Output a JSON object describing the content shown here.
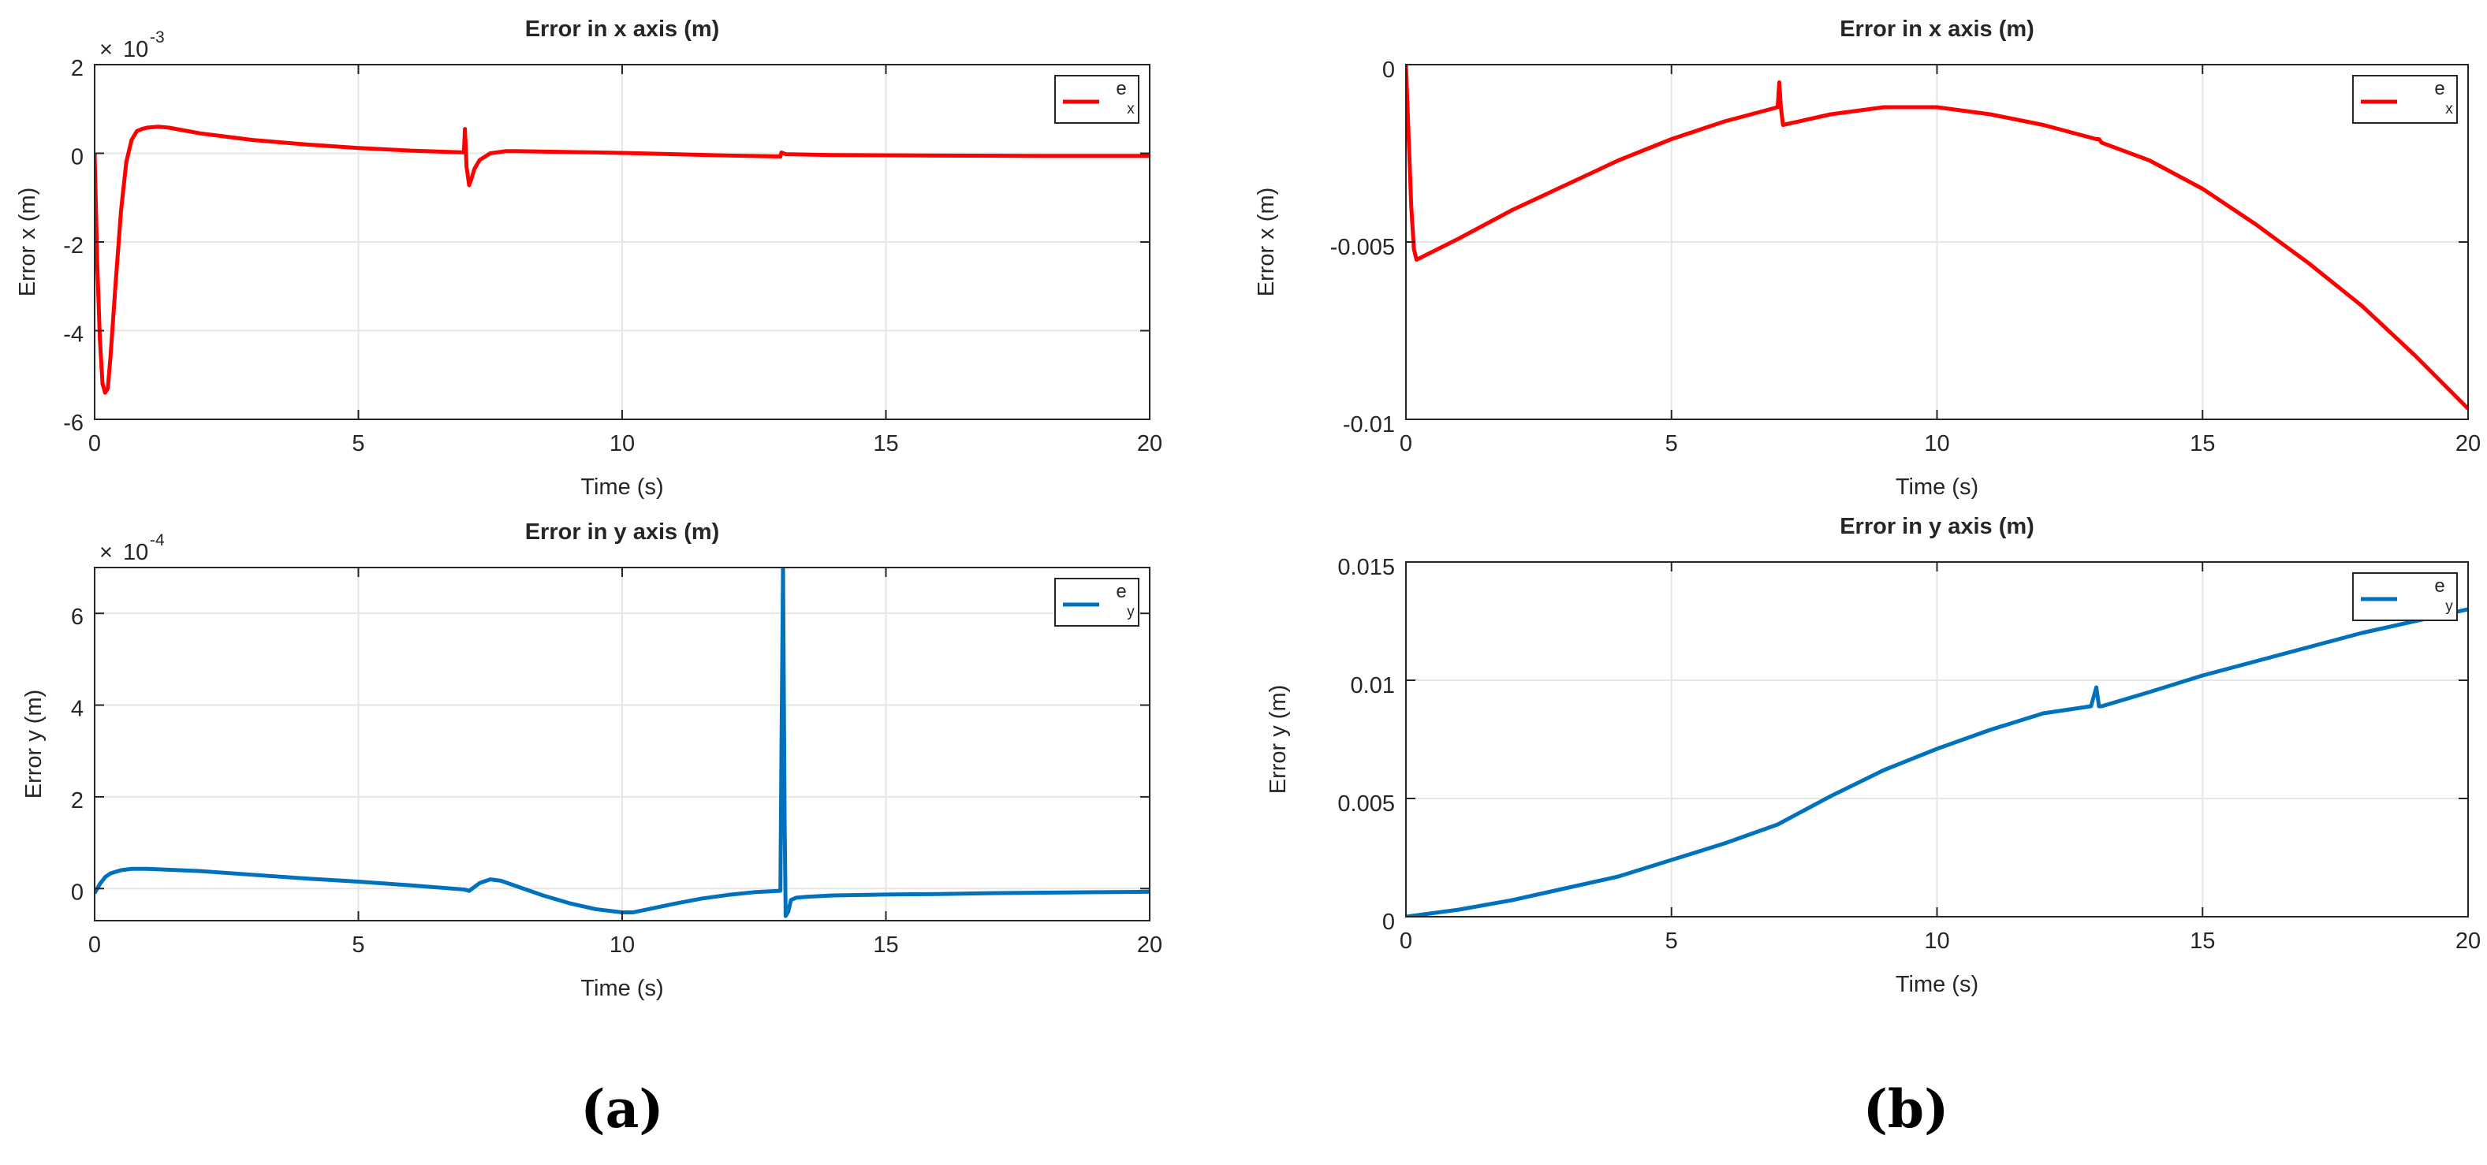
{
  "panel_labels": [
    "(a)",
    "(b)"
  ],
  "colors": {
    "ex": "#ff0000",
    "ey": "#0072bd",
    "axis": "#262626",
    "grid": "#e6e6e6"
  },
  "chart_data": [
    {
      "type": "line",
      "title": "Error in x axis (m)",
      "xlabel": "Time (s)",
      "ylabel": "Error x (m)",
      "exponent_base": "10",
      "exponent": "-3",
      "xlim": [
        0,
        20
      ],
      "ylim": [
        -6,
        2
      ],
      "xticks": [
        0,
        5,
        10,
        15,
        20
      ],
      "xtick_labels": [
        "0",
        "5",
        "10",
        "15",
        "20"
      ],
      "yticks": [
        -6,
        -4,
        -2,
        0,
        2
      ],
      "ytick_labels": [
        "-6",
        "-4",
        "-2",
        "0",
        "2"
      ],
      "grid": true,
      "legend_position": "top-right",
      "series": [
        {
          "name": "e x",
          "legend_main": "e",
          "legend_sub": "x",
          "color": "#ff0000",
          "x": [
            0,
            0.05,
            0.1,
            0.15,
            0.2,
            0.25,
            0.3,
            0.4,
            0.5,
            0.6,
            0.7,
            0.8,
            0.9,
            1.0,
            1.2,
            1.4,
            2,
            3,
            4,
            5,
            6,
            7.0,
            7.02,
            7.05,
            7.1,
            7.15,
            7.2,
            7.3,
            7.5,
            7.8,
            8,
            9,
            10,
            11,
            12,
            13.0,
            13.02,
            13.1,
            14,
            16,
            18,
            20
          ],
          "y": [
            0,
            -2.5,
            -4.2,
            -5.2,
            -5.4,
            -5.3,
            -4.6,
            -2.9,
            -1.3,
            -0.2,
            0.3,
            0.5,
            0.55,
            0.58,
            0.6,
            0.58,
            0.45,
            0.3,
            0.2,
            0.12,
            0.06,
            0.02,
            0.55,
            -0.3,
            -0.72,
            -0.55,
            -0.35,
            -0.15,
            0.0,
            0.05,
            0.05,
            0.03,
            0.01,
            -0.02,
            -0.05,
            -0.07,
            0.02,
            -0.02,
            -0.04,
            -0.05,
            -0.06,
            -0.06
          ]
        }
      ]
    },
    {
      "type": "line",
      "title": "Error in y axis (m)",
      "xlabel": "Time (s)",
      "ylabel": "Error y (m)",
      "exponent_base": "10",
      "exponent": "-4",
      "xlim": [
        0,
        20
      ],
      "ylim": [
        -0.7,
        7
      ],
      "xticks": [
        0,
        5,
        10,
        15,
        20
      ],
      "xtick_labels": [
        "0",
        "5",
        "10",
        "15",
        "20"
      ],
      "yticks": [
        0,
        2,
        4,
        6
      ],
      "ytick_labels": [
        "0",
        "2",
        "4",
        "6"
      ],
      "grid": true,
      "legend_position": "top-right",
      "series": [
        {
          "name": "e y",
          "legend_main": "e",
          "legend_sub": "y",
          "color": "#0072bd",
          "x": [
            0,
            0.1,
            0.2,
            0.3,
            0.5,
            0.7,
            1,
            2,
            3,
            4,
            5,
            6,
            7.0,
            7.1,
            7.3,
            7.5,
            7.7,
            8,
            8.5,
            9,
            9.5,
            10,
            10.2,
            10.5,
            11,
            11.5,
            12,
            12.5,
            13.0,
            13.02,
            13.05,
            13.08,
            13.1,
            13.15,
            13.2,
            13.3,
            13.5,
            14,
            15,
            16,
            17,
            18,
            19,
            20
          ],
          "y": [
            -0.1,
            0.1,
            0.25,
            0.33,
            0.4,
            0.43,
            0.43,
            0.38,
            0.3,
            0.22,
            0.15,
            0.07,
            -0.02,
            -0.05,
            0.12,
            0.2,
            0.17,
            0.05,
            -0.15,
            -0.32,
            -0.45,
            -0.52,
            -0.52,
            -0.45,
            -0.33,
            -0.22,
            -0.14,
            -0.08,
            -0.05,
            3.0,
            7.0,
            1.5,
            -0.6,
            -0.5,
            -0.25,
            -0.2,
            -0.18,
            -0.15,
            -0.13,
            -0.12,
            -0.1,
            -0.09,
            -0.08,
            -0.07
          ]
        }
      ]
    },
    {
      "type": "line",
      "title": "Error in x axis (m)",
      "xlabel": "Time (s)",
      "ylabel": "Error x (m)",
      "xlim": [
        0,
        20
      ],
      "ylim": [
        -0.01,
        0
      ],
      "xticks": [
        0,
        5,
        10,
        15,
        20
      ],
      "xtick_labels": [
        "0",
        "5",
        "10",
        "15",
        "20"
      ],
      "yticks": [
        -0.01,
        -0.005,
        0
      ],
      "ytick_labels": [
        "-0.01",
        "-0.005",
        "0"
      ],
      "grid": true,
      "legend_position": "top-right",
      "series": [
        {
          "name": "e x",
          "legend_main": "e",
          "legend_sub": "x",
          "color": "#ff0000",
          "x": [
            0,
            0.05,
            0.1,
            0.15,
            0.2,
            1,
            2,
            3,
            4,
            5,
            6,
            7.0,
            7.03,
            7.06,
            7.1,
            8,
            9,
            9.5,
            10,
            11,
            12,
            13,
            13.05,
            13.1,
            14,
            15,
            16,
            17,
            18,
            19,
            20
          ],
          "y": [
            0,
            -0.002,
            -0.004,
            -0.0052,
            -0.0055,
            -0.0049,
            -0.0041,
            -0.0034,
            -0.0027,
            -0.0021,
            -0.0016,
            -0.0012,
            -0.0005,
            -0.0012,
            -0.0017,
            -0.0014,
            -0.0012,
            -0.0012,
            -0.0012,
            -0.0014,
            -0.0017,
            -0.0021,
            -0.0021,
            -0.0022,
            -0.0027,
            -0.0035,
            -0.0045,
            -0.0056,
            -0.0068,
            -0.0082,
            -0.0097
          ]
        }
      ]
    },
    {
      "type": "line",
      "title": "Error in y axis (m)",
      "xlabel": "Time (s)",
      "ylabel": "Error y (m)",
      "xlim": [
        0,
        20
      ],
      "ylim": [
        0,
        0.015
      ],
      "xticks": [
        0,
        5,
        10,
        15,
        20
      ],
      "xtick_labels": [
        "0",
        "5",
        "10",
        "15",
        "20"
      ],
      "yticks": [
        0,
        0.005,
        0.01,
        0.015
      ],
      "ytick_labels": [
        "0",
        "0.005",
        "0.01",
        "0.015"
      ],
      "grid": true,
      "legend_position": "top-right",
      "series": [
        {
          "name": "e y",
          "legend_main": "e",
          "legend_sub": "y",
          "color": "#0072bd",
          "x": [
            0,
            1,
            2,
            3,
            4,
            5,
            6,
            7,
            8,
            9,
            10,
            11,
            12,
            12.9,
            13.0,
            13.05,
            13.1,
            14,
            15,
            16,
            17,
            18,
            19,
            20
          ],
          "y": [
            0,
            0.0003,
            0.0007,
            0.0012,
            0.0017,
            0.0024,
            0.0031,
            0.0039,
            0.0051,
            0.0062,
            0.0071,
            0.0079,
            0.0086,
            0.0089,
            0.0097,
            0.0089,
            0.0089,
            0.0095,
            0.0102,
            0.0108,
            0.0114,
            0.012,
            0.0125,
            0.013
          ]
        }
      ]
    }
  ]
}
